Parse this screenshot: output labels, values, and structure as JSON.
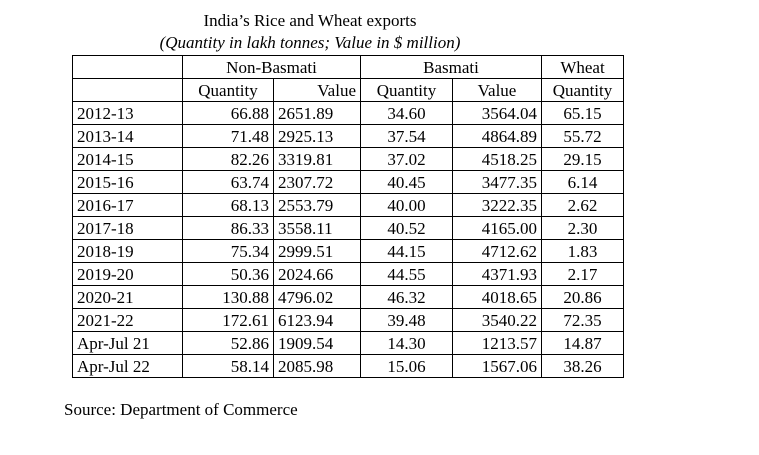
{
  "title": "India’s Rice and Wheat exports",
  "subtitle": "(Quantity in lakh tonnes; Value in $ million)",
  "groups": {
    "non_basmati": "Non-Basmati",
    "basmati": "Basmati",
    "wheat": "Wheat"
  },
  "subheaders": {
    "nb_quantity": "Quantity",
    "nb_value": "Value",
    "b_quantity": "Quantity",
    "b_value": "Value",
    "w_quantity": "Quantity"
  },
  "rows": [
    {
      "year": "2012-13",
      "nb_q": "66.88",
      "nb_v": "2651.89",
      "b_q": "34.60",
      "b_v": "3564.04",
      "w_q": "65.15"
    },
    {
      "year": "2013-14",
      "nb_q": "71.48",
      "nb_v": "2925.13",
      "b_q": "37.54",
      "b_v": "4864.89",
      "w_q": "55.72"
    },
    {
      "year": "2014-15",
      "nb_q": "82.26",
      "nb_v": "3319.81",
      "b_q": "37.02",
      "b_v": "4518.25",
      "w_q": "29.15"
    },
    {
      "year": "2015-16",
      "nb_q": "63.74",
      "nb_v": "2307.72",
      "b_q": "40.45",
      "b_v": "3477.35",
      "w_q": "6.14"
    },
    {
      "year": "2016-17",
      "nb_q": "68.13",
      "nb_v": "2553.79",
      "b_q": "40.00",
      "b_v": "3222.35",
      "w_q": "2.62"
    },
    {
      "year": "2017-18",
      "nb_q": "86.33",
      "nb_v": "3558.11",
      "b_q": "40.52",
      "b_v": "4165.00",
      "w_q": "2.30"
    },
    {
      "year": "2018-19",
      "nb_q": "75.34",
      "nb_v": "2999.51",
      "b_q": "44.15",
      "b_v": "4712.62",
      "w_q": "1.83"
    },
    {
      "year": "2019-20",
      "nb_q": "50.36",
      "nb_v": "2024.66",
      "b_q": "44.55",
      "b_v": "4371.93",
      "w_q": "2.17"
    },
    {
      "year": "2020-21",
      "nb_q": "130.88",
      "nb_v": "4796.02",
      "b_q": "46.32",
      "b_v": "4018.65",
      "w_q": "20.86"
    },
    {
      "year": "2021-22",
      "nb_q": "172.61",
      "nb_v": "6123.94",
      "b_q": "39.48",
      "b_v": "3540.22",
      "w_q": "72.35"
    },
    {
      "year": "Apr-Jul 21",
      "nb_q": "52.86",
      "nb_v": "1909.54",
      "b_q": "14.30",
      "b_v": "1213.57",
      "w_q": "14.87"
    },
    {
      "year": "Apr-Jul 22",
      "nb_q": "58.14",
      "nb_v": "2085.98",
      "b_q": "15.06",
      "b_v": "1567.06",
      "w_q": "38.26"
    }
  ],
  "source": "Source: Department of Commerce"
}
